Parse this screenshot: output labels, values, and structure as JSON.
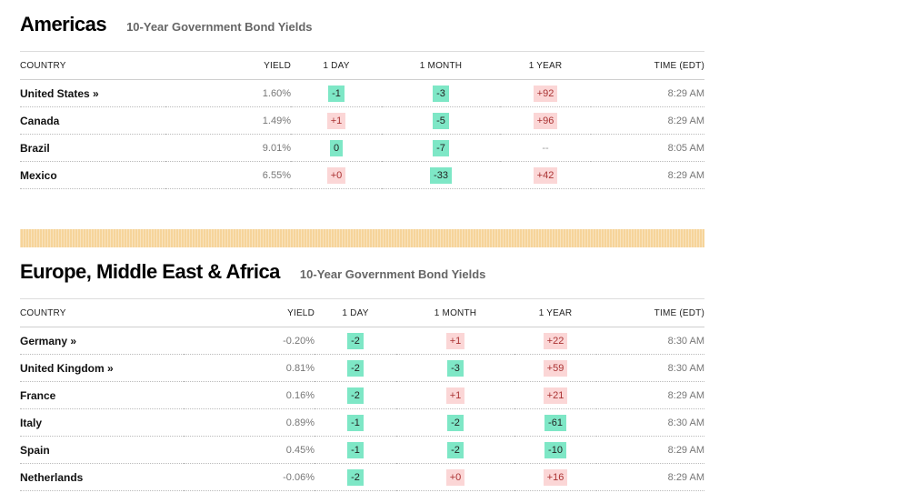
{
  "americas": {
    "title": "Americas",
    "subtitle": "10-Year Government Bond Yields",
    "headers": [
      "COUNTRY",
      "YIELD",
      "1 DAY",
      "1 MONTH",
      "1 YEAR",
      "TIME (EDT)"
    ],
    "rows": [
      {
        "country": "United States »",
        "yield": "1.60%",
        "day": "-1",
        "day_t": "neg",
        "month": "-3",
        "month_t": "neg",
        "year": "+92",
        "year_t": "pos",
        "time": "8:29 AM"
      },
      {
        "country": "Canada",
        "yield": "1.49%",
        "day": "+1",
        "day_t": "pos",
        "month": "-5",
        "month_t": "neg",
        "year": "+96",
        "year_t": "pos",
        "time": "8:29 AM"
      },
      {
        "country": "Brazil",
        "yield": "9.01%",
        "day": "0",
        "day_t": "neg",
        "month": "-7",
        "month_t": "neg",
        "year": "--",
        "year_t": "none",
        "time": "8:05 AM"
      },
      {
        "country": "Mexico",
        "yield": "6.55%",
        "day": "+0",
        "day_t": "pos",
        "month": "-33",
        "month_t": "neg",
        "year": "+42",
        "year_t": "pos",
        "time": "8:29 AM"
      }
    ]
  },
  "emea": {
    "title": "Europe, Middle East & Africa",
    "subtitle": "10-Year Government Bond Yields",
    "headers": [
      "COUNTRY",
      "YIELD",
      "1 DAY",
      "1 MONTH",
      "1 YEAR",
      "TIME (EDT)"
    ],
    "rows": [
      {
        "country": "Germany »",
        "yield": "-0.20%",
        "day": "-2",
        "day_t": "neg",
        "month": "+1",
        "month_t": "pos",
        "year": "+22",
        "year_t": "pos",
        "time": "8:30 AM"
      },
      {
        "country": "United Kingdom »",
        "yield": "0.81%",
        "day": "-2",
        "day_t": "neg",
        "month": "-3",
        "month_t": "neg",
        "year": "+59",
        "year_t": "pos",
        "time": "8:30 AM"
      },
      {
        "country": "France",
        "yield": "0.16%",
        "day": "-2",
        "day_t": "neg",
        "month": "+1",
        "month_t": "pos",
        "year": "+21",
        "year_t": "pos",
        "time": "8:29 AM"
      },
      {
        "country": "Italy",
        "yield": "0.89%",
        "day": "-1",
        "day_t": "neg",
        "month": "-2",
        "month_t": "neg",
        "year": "-61",
        "year_t": "neg",
        "time": "8:30 AM"
      },
      {
        "country": "Spain",
        "yield": "0.45%",
        "day": "-1",
        "day_t": "neg",
        "month": "-2",
        "month_t": "neg",
        "year": "-10",
        "year_t": "neg",
        "time": "8:29 AM"
      },
      {
        "country": "Netherlands",
        "yield": "-0.06%",
        "day": "-2",
        "day_t": "neg",
        "month": "+0",
        "month_t": "pos",
        "year": "+16",
        "year_t": "pos",
        "time": "8:29 AM"
      }
    ]
  },
  "colors": {
    "negative_bg": "#7ee7c6",
    "positive_bg": "#fbd6d6",
    "divider": "#f6d49a"
  }
}
